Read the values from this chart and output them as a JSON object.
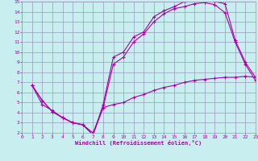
{
  "xlabel": "Windchill (Refroidissement éolien,°C)",
  "background_color": "#c8eef0",
  "grid_color": "#9999bb",
  "line_color": "#aa00aa",
  "xlim": [
    0,
    23
  ],
  "ylim": [
    2,
    15
  ],
  "xticks": [
    0,
    1,
    2,
    3,
    4,
    5,
    6,
    7,
    8,
    9,
    10,
    11,
    12,
    13,
    14,
    15,
    16,
    17,
    18,
    19,
    20,
    21,
    22,
    23
  ],
  "yticks": [
    2,
    3,
    4,
    5,
    6,
    7,
    8,
    9,
    10,
    11,
    12,
    13,
    14,
    15
  ],
  "line1_x": [
    1,
    2,
    3,
    4,
    5,
    6,
    7,
    8,
    9,
    10,
    11,
    12,
    13,
    14,
    15,
    16,
    17,
    18,
    19,
    20,
    21,
    22,
    23
  ],
  "line1_y": [
    6.7,
    5.2,
    4.1,
    3.5,
    3.0,
    2.8,
    1.8,
    4.8,
    9.5,
    10.0,
    11.5,
    12.0,
    13.5,
    14.1,
    14.5,
    15.0,
    15.2,
    15.2,
    15.0,
    14.8,
    11.2,
    9.0,
    7.5
  ],
  "line2_x": [
    1,
    2,
    3,
    4,
    5,
    6,
    7,
    8,
    9,
    10,
    11,
    12,
    13,
    14,
    15,
    16,
    17,
    18,
    19,
    20,
    21,
    22,
    23
  ],
  "line2_y": [
    6.7,
    5.2,
    4.1,
    3.5,
    3.0,
    2.8,
    1.8,
    4.5,
    8.8,
    9.5,
    11.0,
    11.8,
    13.0,
    13.8,
    14.3,
    14.5,
    14.8,
    14.9,
    14.7,
    13.9,
    11.0,
    8.8,
    7.2
  ],
  "line3_x": [
    1,
    2,
    3,
    4,
    5,
    6,
    7,
    8,
    9,
    10,
    11,
    12,
    13,
    14,
    15,
    16,
    17,
    18,
    19,
    20,
    21,
    22,
    23
  ],
  "line3_y": [
    6.7,
    4.8,
    4.2,
    3.5,
    3.0,
    2.8,
    2.0,
    4.5,
    4.8,
    5.0,
    5.5,
    5.8,
    6.2,
    6.5,
    6.7,
    7.0,
    7.2,
    7.3,
    7.4,
    7.5,
    7.5,
    7.6,
    7.5
  ]
}
